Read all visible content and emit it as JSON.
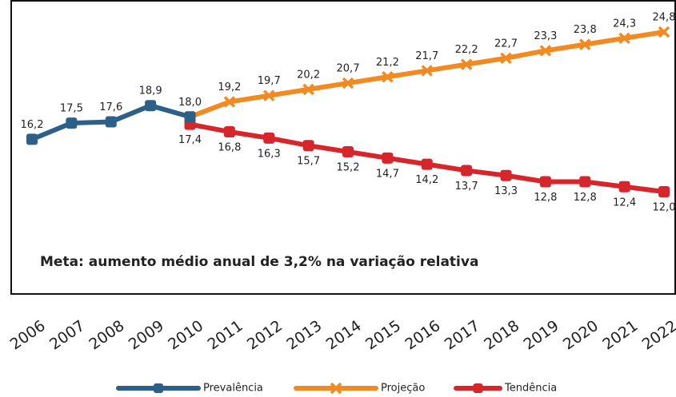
{
  "chart_data": {
    "type": "line",
    "categories": [
      "2006",
      "2007",
      "2008",
      "2009",
      "2010",
      "2011",
      "2012",
      "2013",
      "2014",
      "2015",
      "2016",
      "2017",
      "2018",
      "2019",
      "2020",
      "2021",
      "2022"
    ],
    "series": [
      {
        "name": "Prevalência",
        "color": "#2d6088",
        "marker": "square",
        "label_side": "above",
        "values": [
          16.2,
          17.5,
          17.6,
          18.9,
          18.0,
          null,
          null,
          null,
          null,
          null,
          null,
          null,
          null,
          null,
          null,
          null,
          null
        ],
        "value_labels": [
          "16,2",
          "17,5",
          "17,6",
          "18,9",
          "18,0",
          null,
          null,
          null,
          null,
          null,
          null,
          null,
          null,
          null,
          null,
          null,
          null
        ]
      },
      {
        "name": "Projeção",
        "color": "#f28a22",
        "marker": "x",
        "label_side": "above",
        "values": [
          null,
          null,
          null,
          null,
          null,
          19.2,
          19.7,
          20.2,
          20.7,
          21.2,
          21.7,
          22.2,
          22.7,
          23.3,
          23.8,
          24.3,
          24.8
        ],
        "value_labels": [
          null,
          null,
          null,
          null,
          null,
          "19,2",
          "19,7",
          "20,2",
          "20,7",
          "21,2",
          "21,7",
          "22,2",
          "22,7",
          "23,3",
          "23,8",
          "24,3",
          "24,8"
        ]
      },
      {
        "name": "Tendência",
        "color": "#d7262b",
        "marker": "square",
        "label_side": "below",
        "values": [
          null,
          null,
          null,
          null,
          17.4,
          16.8,
          16.3,
          15.7,
          15.2,
          14.7,
          14.2,
          13.7,
          13.3,
          12.8,
          12.8,
          12.4,
          12.0
        ],
        "value_labels": [
          null,
          null,
          null,
          null,
          "17,4",
          "16,8",
          "16,3",
          "15,7",
          "15,2",
          "14,7",
          "14,2",
          "13,7",
          "13,3",
          "12,8",
          "12,8",
          "12,4",
          "12,0"
        ]
      }
    ],
    "annotation": "Meta: aumento médio anual de 3,2% na variação relativa"
  }
}
